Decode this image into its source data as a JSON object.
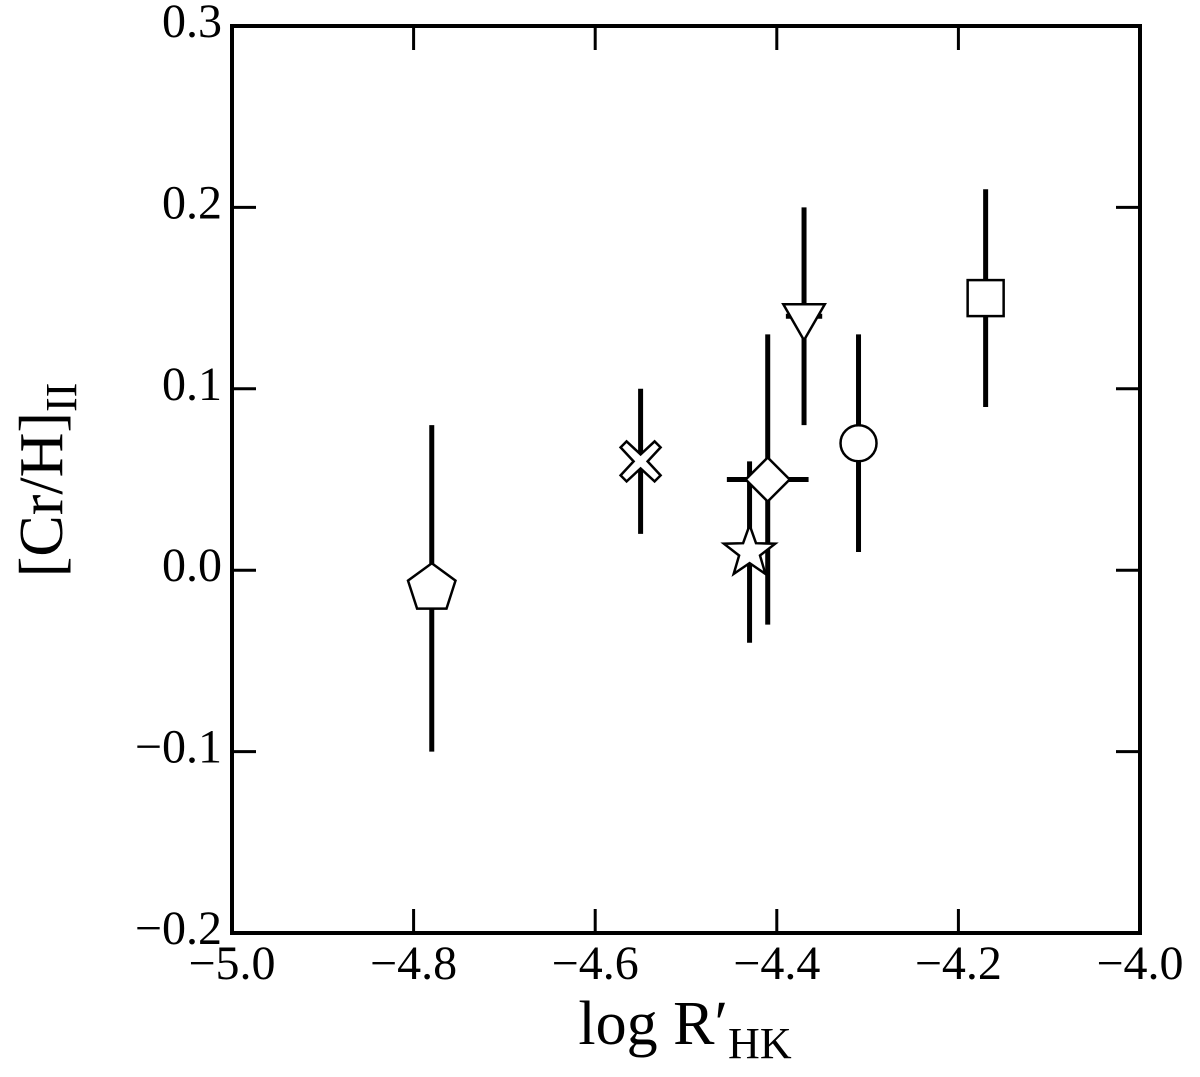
{
  "chart_data": {
    "type": "errorbar-scatter",
    "xlabel": {
      "text": "log R′",
      "subscript": "HK"
    },
    "ylabel": {
      "text": "[Cr/H]",
      "subscript": "II"
    },
    "xlim": [
      -5.0,
      -4.0
    ],
    "ylim": [
      -0.2,
      0.3
    ],
    "xticks": [
      {
        "value": -5.0,
        "label": "−5.0"
      },
      {
        "value": -4.8,
        "label": "−4.8"
      },
      {
        "value": -4.6,
        "label": "−4.6"
      },
      {
        "value": -4.4,
        "label": "−4.4"
      },
      {
        "value": -4.2,
        "label": "−4.2"
      },
      {
        "value": -4.0,
        "label": "−4.0"
      }
    ],
    "yticks": [
      {
        "value": -0.2,
        "label": "−0.2"
      },
      {
        "value": -0.1,
        "label": "−0.1"
      },
      {
        "value": 0,
        "label": "0.0"
      },
      0.1,
      0.2,
      0.3
    ],
    "color": "#000000",
    "points": [
      {
        "marker": "pentagon",
        "x": -4.78,
        "y": -0.01,
        "yerr": 0.09
      },
      {
        "marker": "x",
        "x": -4.55,
        "y": 0.06,
        "yerr": 0.04
      },
      {
        "marker": "star",
        "x": -4.43,
        "y": 0.01,
        "yerr": 0.05
      },
      {
        "marker": "diamond",
        "x": -4.41,
        "y": 0.05,
        "yerr": 0.08,
        "xerr": 0.045
      },
      {
        "marker": "triangle-down",
        "x": -4.37,
        "y": 0.14,
        "yerr": 0.06,
        "xerr": 0.02
      },
      {
        "marker": "circle",
        "x": -4.31,
        "y": 0.07,
        "yerr": 0.06
      },
      {
        "marker": "square",
        "x": -4.17,
        "y": 0.15,
        "yerr": 0.06
      }
    ]
  }
}
